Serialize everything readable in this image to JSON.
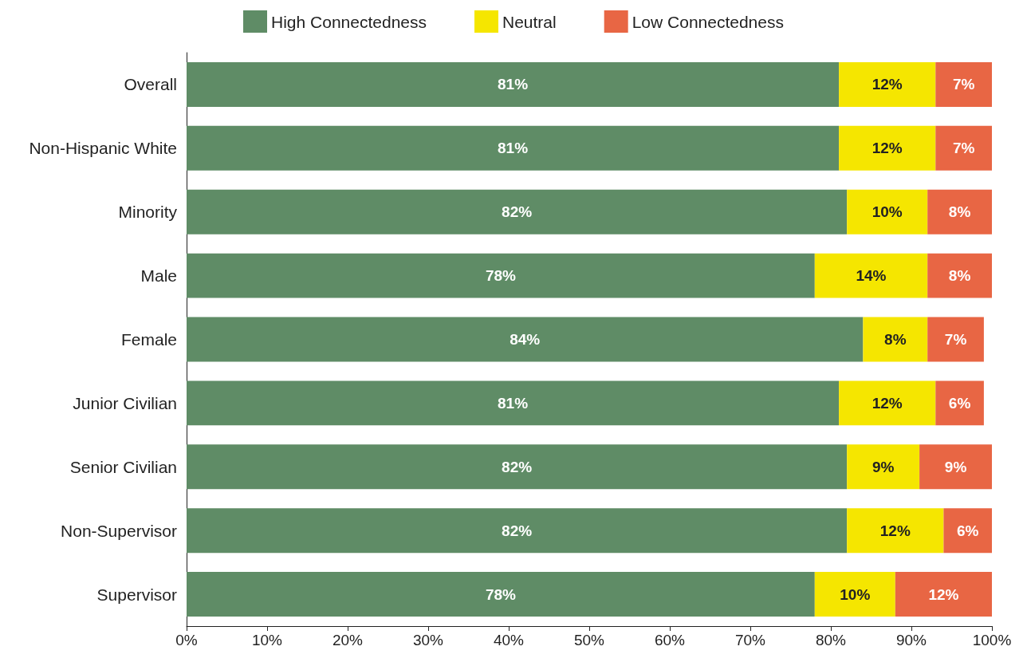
{
  "chart_data": {
    "type": "bar",
    "orientation": "horizontal",
    "stacked": true,
    "categories": [
      "Overall",
      "Non-Hispanic White",
      "Minority",
      "Male",
      "Female",
      "Junior Civilian",
      "Senior Civilian",
      "Non-Supervisor",
      "Supervisor"
    ],
    "series": [
      {
        "name": "High Connectedness",
        "color": "#5f8c66",
        "values": [
          81,
          81,
          82,
          78,
          84,
          81,
          82,
          82,
          78
        ],
        "value_labels": [
          "81%",
          "81%",
          "82%",
          "78%",
          "84%",
          "81%",
          "82%",
          "82%",
          "78%"
        ]
      },
      {
        "name": "Neutral",
        "color": "#f5e600",
        "values": [
          12,
          12,
          10,
          14,
          8,
          12,
          9,
          12,
          10
        ],
        "value_labels": [
          "12%",
          "12%",
          "10%",
          "14%",
          "8%",
          "12%",
          "9%",
          "12%",
          "10%"
        ]
      },
      {
        "name": "Low Connectedness",
        "color": "#e86644",
        "values": [
          7,
          7,
          8,
          8,
          7,
          6,
          9,
          6,
          12
        ],
        "value_labels": [
          "7%",
          "7%",
          "8%",
          "8%",
          "7%",
          "6%",
          "9%",
          "6%",
          "12%"
        ]
      }
    ],
    "xlim": [
      0,
      100
    ],
    "xticks": [
      {
        "value": 0,
        "label": "0%"
      },
      {
        "value": 10,
        "label": "10%"
      },
      {
        "value": 20,
        "label": "20%"
      },
      {
        "value": 30,
        "label": "30%"
      },
      {
        "value": 40,
        "label": "40%"
      },
      {
        "value": 50,
        "label": "50%"
      },
      {
        "value": 60,
        "label": "60%"
      },
      {
        "value": 70,
        "label": "70%"
      },
      {
        "value": 80,
        "label": "80%"
      },
      {
        "value": 90,
        "label": "90%"
      },
      {
        "value": 100,
        "label": "100%"
      }
    ],
    "grid": false,
    "legend": "top"
  }
}
